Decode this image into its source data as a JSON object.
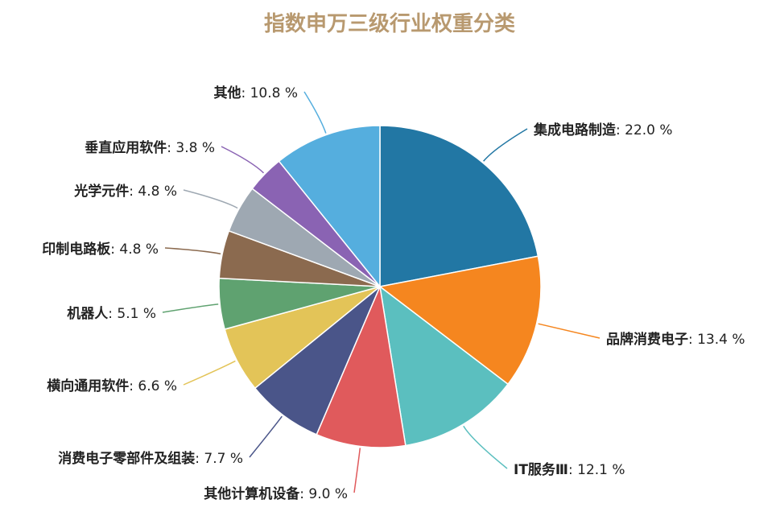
{
  "chart_data": {
    "type": "pie",
    "title": "指数申万三级行业权重分类",
    "categories": [
      "集成电路制造",
      "品牌消费电子",
      "IT服务Ⅲ",
      "其他计算机设备",
      "消费电子零部件及组装",
      "横向通用软件",
      "机器人",
      "印制电路板",
      "光学元件",
      "垂直应用软件",
      "其他"
    ],
    "values": [
      22.0,
      13.4,
      12.1,
      9.0,
      7.7,
      6.6,
      5.1,
      4.8,
      4.8,
      3.8,
      10.8
    ],
    "value_labels": [
      ": 22.0 %",
      ": 13.4 %",
      ": 12.1 %",
      ": 9.0 %",
      ": 7.7 %",
      ": 6.6 %",
      ": 5.1 %",
      ": 4.8 %",
      ": 4.8 %",
      ": 3.8 %",
      ": 10.8 %"
    ],
    "colors": [
      "#2277a4",
      "#f5861f",
      "#5bbfbf",
      "#e05a5c",
      "#4a5589",
      "#e3c458",
      "#5fa270",
      "#8b6a4f",
      "#9ea8b2",
      "#8a63b3",
      "#55aede"
    ]
  }
}
